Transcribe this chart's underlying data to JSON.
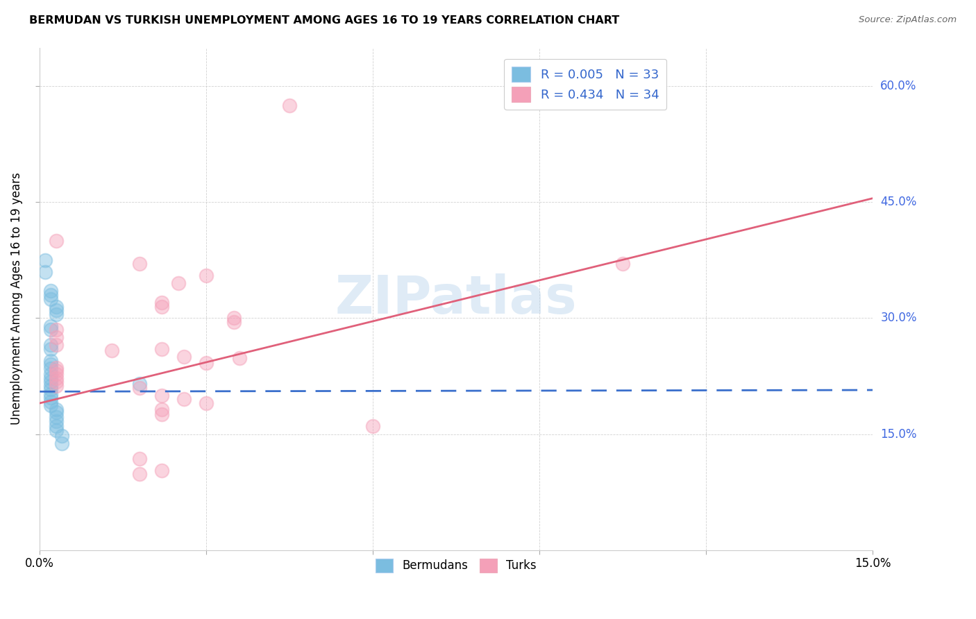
{
  "title": "BERMUDAN VS TURKISH UNEMPLOYMENT AMONG AGES 16 TO 19 YEARS CORRELATION CHART",
  "source": "Source: ZipAtlas.com",
  "ylabel": "Unemployment Among Ages 16 to 19 years",
  "xlim": [
    0.0,
    0.15
  ],
  "ylim": [
    0.0,
    0.65
  ],
  "watermark": "ZIPatlas",
  "bermuda_color": "#7bbde0",
  "turk_color": "#f4a0b8",
  "bermuda_line_color": "#3a6fcc",
  "turk_line_color": "#e0607a",
  "bermuda_scatter": [
    [
      0.001,
      0.375
    ],
    [
      0.001,
      0.36
    ],
    [
      0.002,
      0.335
    ],
    [
      0.002,
      0.33
    ],
    [
      0.002,
      0.325
    ],
    [
      0.003,
      0.315
    ],
    [
      0.003,
      0.31
    ],
    [
      0.003,
      0.305
    ],
    [
      0.002,
      0.29
    ],
    [
      0.002,
      0.285
    ],
    [
      0.002,
      0.265
    ],
    [
      0.002,
      0.26
    ],
    [
      0.002,
      0.245
    ],
    [
      0.002,
      0.24
    ],
    [
      0.002,
      0.235
    ],
    [
      0.002,
      0.228
    ],
    [
      0.002,
      0.222
    ],
    [
      0.002,
      0.218
    ],
    [
      0.002,
      0.212
    ],
    [
      0.002,
      0.208
    ],
    [
      0.002,
      0.202
    ],
    [
      0.002,
      0.197
    ],
    [
      0.002,
      0.192
    ],
    [
      0.002,
      0.187
    ],
    [
      0.003,
      0.182
    ],
    [
      0.003,
      0.178
    ],
    [
      0.003,
      0.172
    ],
    [
      0.003,
      0.167
    ],
    [
      0.003,
      0.16
    ],
    [
      0.003,
      0.155
    ],
    [
      0.004,
      0.148
    ],
    [
      0.004,
      0.138
    ],
    [
      0.018,
      0.215
    ]
  ],
  "turk_scatter": [
    [
      0.045,
      0.575
    ],
    [
      0.003,
      0.4
    ],
    [
      0.018,
      0.37
    ],
    [
      0.03,
      0.355
    ],
    [
      0.025,
      0.345
    ],
    [
      0.022,
      0.32
    ],
    [
      0.022,
      0.315
    ],
    [
      0.035,
      0.3
    ],
    [
      0.035,
      0.295
    ],
    [
      0.003,
      0.285
    ],
    [
      0.003,
      0.275
    ],
    [
      0.003,
      0.265
    ],
    [
      0.022,
      0.26
    ],
    [
      0.013,
      0.258
    ],
    [
      0.026,
      0.25
    ],
    [
      0.036,
      0.248
    ],
    [
      0.03,
      0.242
    ],
    [
      0.003,
      0.236
    ],
    [
      0.003,
      0.232
    ],
    [
      0.003,
      0.228
    ],
    [
      0.003,
      0.222
    ],
    [
      0.003,
      0.218
    ],
    [
      0.003,
      0.212
    ],
    [
      0.018,
      0.21
    ],
    [
      0.022,
      0.2
    ],
    [
      0.026,
      0.195
    ],
    [
      0.03,
      0.19
    ],
    [
      0.022,
      0.182
    ],
    [
      0.022,
      0.176
    ],
    [
      0.06,
      0.16
    ],
    [
      0.018,
      0.118
    ],
    [
      0.022,
      0.103
    ],
    [
      0.018,
      0.098
    ],
    [
      0.105,
      0.37
    ]
  ],
  "bermuda_R": 0.005,
  "turk_R": 0.434,
  "bermuda_N": 33,
  "turk_N": 34,
  "bermuda_line": [
    0.0,
    0.205,
    0.15,
    0.207
  ],
  "turk_line": [
    0.0,
    0.19,
    0.15,
    0.455
  ]
}
